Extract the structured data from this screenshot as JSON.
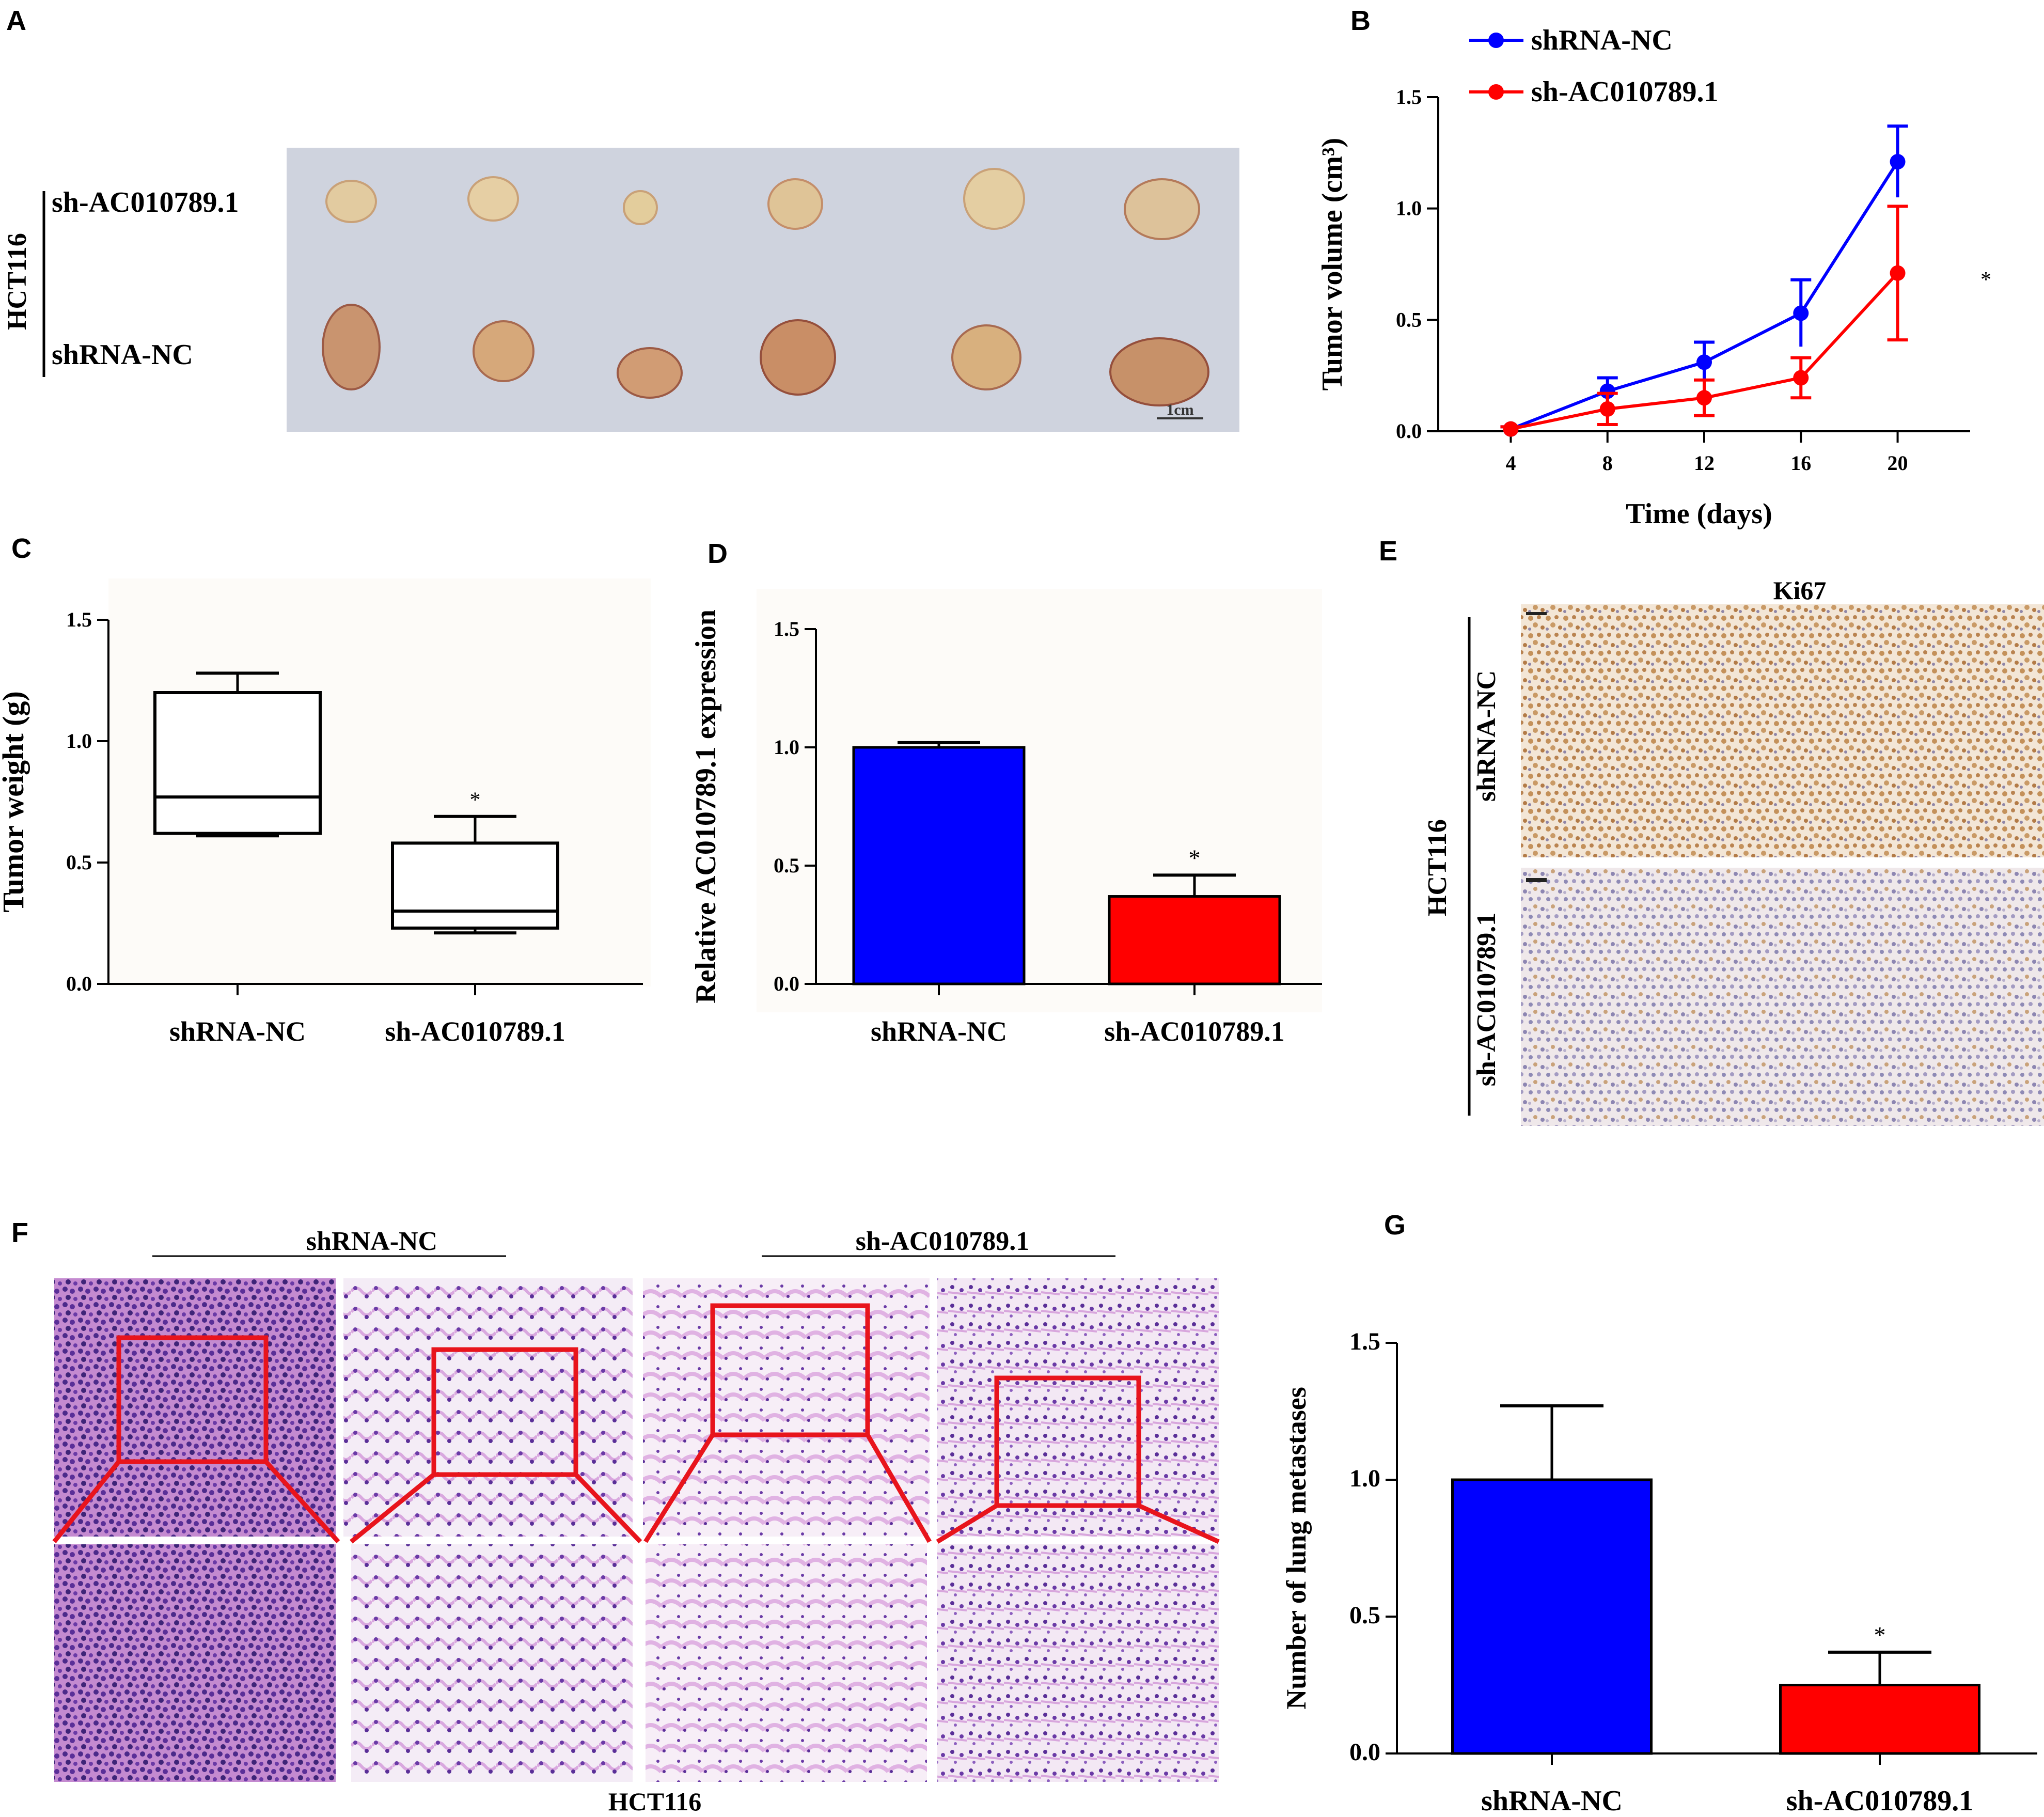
{
  "figure": {
    "panel_labels": [
      "A",
      "B",
      "C",
      "D",
      "E",
      "F",
      "G"
    ],
    "cell_line": "HCT116"
  },
  "panel_a": {
    "row_top": "sh-AC010789.1",
    "row_bottom": "shRNA-NC",
    "side_label": "HCT116",
    "scale_bar": "1cm",
    "tumor_count_per_row": 6
  },
  "panel_e": {
    "title": "Ki67",
    "side_label": "HCT116",
    "row_top": "shRNA-NC",
    "row_bottom": "sh-AC010789.1"
  },
  "panel_f": {
    "group_left": "shRNA-NC",
    "group_right": "sh-AC010789.1",
    "bottom_label": "HCT116"
  },
  "colors": {
    "nc": "#0000ff",
    "sh": "#ff0000",
    "zoom_box": "#e8141c"
  },
  "chart_data": [
    {
      "panel": "B",
      "type": "line",
      "title": "",
      "xlabel": "Time (days)",
      "ylabel": "Tumor volume (cm³)",
      "x": [
        4,
        8,
        12,
        16,
        20
      ],
      "ylim": [
        0,
        1.5
      ],
      "yticks": [
        "0.0",
        "0.5",
        "1.0",
        "1.5"
      ],
      "xticks": [
        "4",
        "8",
        "12",
        "16",
        "20"
      ],
      "series": [
        {
          "name": "shRNA-NC",
          "values": [
            0.01,
            0.18,
            0.31,
            0.53,
            1.21
          ],
          "errors": [
            0.01,
            0.06,
            0.09,
            0.15,
            0.16
          ]
        },
        {
          "name": "sh-AC010789.1",
          "values": [
            0.01,
            0.1,
            0.15,
            0.24,
            0.71
          ],
          "errors": [
            0.01,
            0.07,
            0.08,
            0.09,
            0.3
          ]
        }
      ],
      "annotation": "*"
    },
    {
      "panel": "C",
      "type": "box",
      "ylabel": "Tumor weight (g)",
      "categories": [
        "shRNA-NC",
        "sh-AC010789.1"
      ],
      "ylim": [
        0,
        1.5
      ],
      "yticks": [
        "0.0",
        "0.5",
        "1.0",
        "1.5"
      ],
      "boxes": [
        {
          "min": 0.61,
          "q1": 0.62,
          "median": 0.77,
          "q3": 1.2,
          "max": 1.28
        },
        {
          "min": 0.21,
          "q1": 0.23,
          "median": 0.3,
          "q3": 0.58,
          "max": 0.69
        }
      ],
      "annotation": "*"
    },
    {
      "panel": "D",
      "type": "bar",
      "ylabel": "Relative AC010789.1 expression",
      "categories": [
        "shRNA-NC",
        "sh-AC010789.1"
      ],
      "values": [
        1.0,
        0.37
      ],
      "errors": [
        0.02,
        0.09
      ],
      "ylim": [
        0,
        1.5
      ],
      "yticks": [
        "0.0",
        "0.5",
        "1.0",
        "1.5"
      ],
      "annotation": "*"
    },
    {
      "panel": "G",
      "type": "bar",
      "ylabel": "Number of lung metastases",
      "categories": [
        "shRNA-NC",
        "sh-AC010789.1"
      ],
      "values": [
        1.0,
        0.25
      ],
      "errors": [
        0.27,
        0.12
      ],
      "ylim": [
        0,
        1.5
      ],
      "yticks": [
        "0.0",
        "0.5",
        "1.0",
        "1.5"
      ],
      "annotation": "*"
    }
  ]
}
